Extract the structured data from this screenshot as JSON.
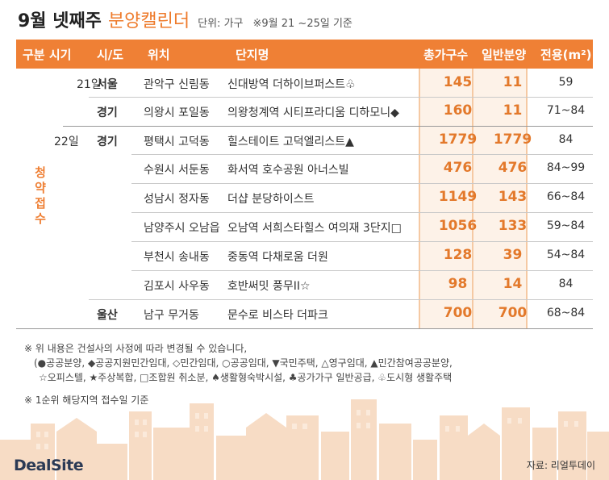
{
  "title": {
    "main": "9월 넷째주",
    "sub": "분양캘린더",
    "unit": "단위: 가구",
    "basis": "※9월 21 ~25일 기준"
  },
  "headers": {
    "gubun_time": "구분 시기",
    "sido": "시/도",
    "location": "위치",
    "complex": "단지명",
    "total": "총가구수",
    "general": "일반분양",
    "area": "전용(m²)"
  },
  "category_label": [
    "청",
    "약",
    "접",
    "수"
  ],
  "rows": [
    {
      "date": "21일",
      "sido": "서울",
      "location": "관악구 신림동",
      "complex": "신대방역 더하이브퍼스트♧",
      "total": "145",
      "general": "11",
      "area": "59"
    },
    {
      "date": "",
      "sido": "경기",
      "location": "의왕시 포일동",
      "complex": "의왕청계역 시티프라디움 디하모니◆",
      "total": "160",
      "general": "11",
      "area": "71~84"
    },
    {
      "date": "22일",
      "sido": "경기",
      "location": "평택시 고덕동",
      "complex": "힐스테이트 고덕엘리스트▲",
      "total": "1779",
      "general": "1779",
      "area": "84"
    },
    {
      "date": "",
      "sido": "",
      "location": "수원시 서둔동",
      "complex": "화서역 호수공원 아너스빌",
      "total": "476",
      "general": "476",
      "area": "84~99"
    },
    {
      "date": "",
      "sido": "",
      "location": "성남시 정자동",
      "complex": "더샵 분당하이스트",
      "total": "1149",
      "general": "143",
      "area": "66~84"
    },
    {
      "date": "",
      "sido": "",
      "location": "남양주시 오남읍",
      "complex": "오남역 서희스타힐스 여의재 3단지□",
      "total": "1056",
      "general": "133",
      "area": "59~84"
    },
    {
      "date": "",
      "sido": "",
      "location": "부천시 송내동",
      "complex": "중동역 다채로움 더원",
      "total": "128",
      "general": "39",
      "area": "54~84"
    },
    {
      "date": "",
      "sido": "",
      "location": "김포시 사우동",
      "complex": "호반써밋 풍무II☆",
      "total": "98",
      "general": "14",
      "area": "84"
    },
    {
      "date": "",
      "sido": "울산",
      "location": "남구 무거동",
      "complex": "문수로 비스타 더파크",
      "total": "700",
      "general": "700",
      "area": "68~84"
    }
  ],
  "notes": {
    "line1": "※  위 내용은 건설사의 사정에 따라 변경될 수 있습니다,",
    "line2": "(●공공분양, ◆공공지원민간임대, ◇민간임대, ○공공임대, ▼국민주택, △영구임대, ▲민간참여공공분양,",
    "line3": "☆오피스텔, ★주상복합, □조합원 취소분, ♠생활형숙박시설, ♣공가가구 일반공급, ♧도시형 생활주택",
    "line4": "※  1순위 해당지역 접수일 기준"
  },
  "footer": {
    "logo": "DealSite",
    "source": "자료: 리얼투데이"
  },
  "colors": {
    "accent": "#ef8035",
    "number": "#e3792b",
    "number_bg": "#fdf2e8",
    "skyline": "#f5d6bc"
  }
}
